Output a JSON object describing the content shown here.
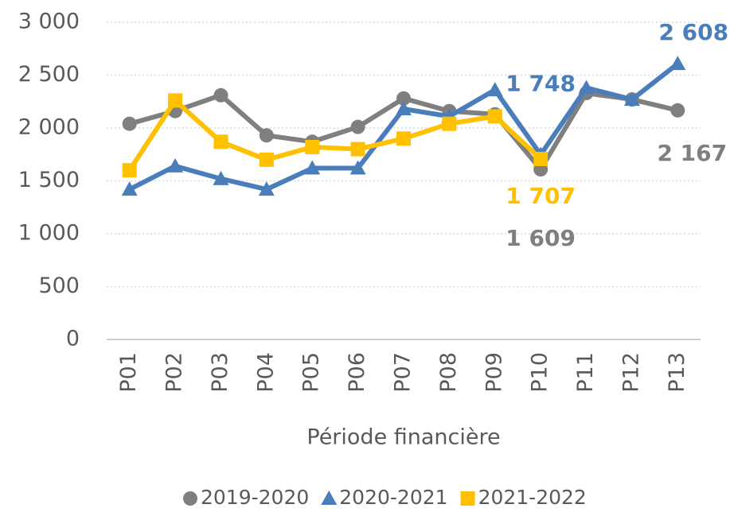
{
  "chart_data": {
    "type": "line",
    "x_label": "Période financière",
    "categories": [
      "P01",
      "P02",
      "P03",
      "P04",
      "P05",
      "P06",
      "P07",
      "P08",
      "P09",
      "P10",
      "P11",
      "P12",
      "P13"
    ],
    "series": [
      {
        "name": "2019-2020",
        "color": "#7f7f7f",
        "marker": "circle",
        "values": [
          2040,
          2160,
          2310,
          1930,
          1870,
          2010,
          2280,
          2160,
          2130,
          1609,
          2330,
          2270,
          2167
        ],
        "value_labels": [
          null,
          null,
          null,
          null,
          null,
          null,
          null,
          null,
          null,
          "1 609",
          null,
          null,
          "2 167"
        ]
      },
      {
        "name": "2020-2021",
        "color": "#4a7ebb",
        "marker": "triangle",
        "values": [
          1420,
          1640,
          1520,
          1420,
          1620,
          1620,
          2180,
          2110,
          2360,
          1748,
          2380,
          2270,
          2608
        ],
        "value_labels": [
          null,
          null,
          null,
          null,
          null,
          null,
          null,
          null,
          null,
          "1 748",
          null,
          null,
          "2 608"
        ]
      },
      {
        "name": "2021-2022",
        "color": "#ffc000",
        "marker": "square",
        "values": [
          1600,
          2260,
          1870,
          1700,
          1820,
          1800,
          1900,
          2040,
          2110,
          1707,
          null,
          null,
          null
        ],
        "value_labels": [
          null,
          null,
          null,
          null,
          null,
          null,
          null,
          null,
          null,
          "1 707",
          null,
          null,
          null
        ]
      }
    ],
    "ylim": [
      0,
      3000
    ],
    "yticks": [
      0,
      500,
      {
        "value": 1000,
        "label": "1 000"
      },
      {
        "value": 1500,
        "label": "1 500"
      },
      {
        "value": 2000,
        "label": "2 000"
      },
      {
        "value": 2500,
        "label": "2 500"
      },
      {
        "value": 3000,
        "label": "3 000"
      }
    ],
    "grid": true,
    "legend": "bottom"
  }
}
